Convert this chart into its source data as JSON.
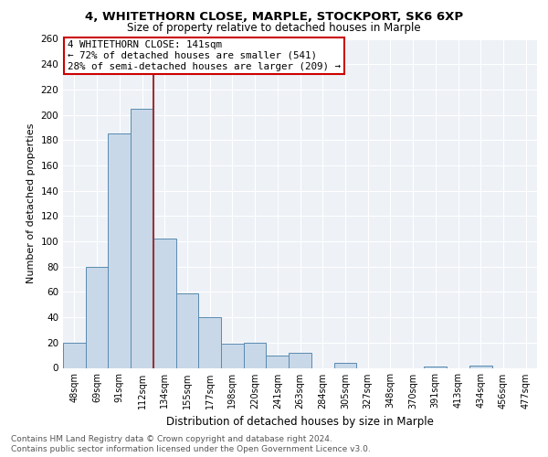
{
  "title1": "4, WHITETHORN CLOSE, MARPLE, STOCKPORT, SK6 6XP",
  "title2": "Size of property relative to detached houses in Marple",
  "xlabel": "Distribution of detached houses by size in Marple",
  "ylabel": "Number of detached properties",
  "categories": [
    "48sqm",
    "69sqm",
    "91sqm",
    "112sqm",
    "134sqm",
    "155sqm",
    "177sqm",
    "198sqm",
    "220sqm",
    "241sqm",
    "263sqm",
    "284sqm",
    "305sqm",
    "327sqm",
    "348sqm",
    "370sqm",
    "391sqm",
    "413sqm",
    "434sqm",
    "456sqm",
    "477sqm"
  ],
  "values": [
    20,
    80,
    185,
    205,
    102,
    59,
    40,
    19,
    20,
    10,
    12,
    0,
    4,
    0,
    0,
    0,
    1,
    0,
    2,
    0,
    0
  ],
  "bar_color": "#c8d8e8",
  "bar_edge_color": "#5a8ab0",
  "vline_x": 3.5,
  "subject_label": "4 WHITETHORN CLOSE: 141sqm",
  "annotation_line1": "← 72% of detached houses are smaller (541)",
  "annotation_line2": "28% of semi-detached houses are larger (209) →",
  "vline_color": "#993333",
  "box_color": "#cc0000",
  "ylim": [
    0,
    260
  ],
  "yticks": [
    0,
    20,
    40,
    60,
    80,
    100,
    120,
    140,
    160,
    180,
    200,
    220,
    240,
    260
  ],
  "footer_line1": "Contains HM Land Registry data © Crown copyright and database right 2024.",
  "footer_line2": "Contains public sector information licensed under the Open Government Licence v3.0.",
  "bg_color": "#eef2f7",
  "grid_color": "#ffffff",
  "title1_fontsize": 9.5,
  "title2_fontsize": 8.5
}
